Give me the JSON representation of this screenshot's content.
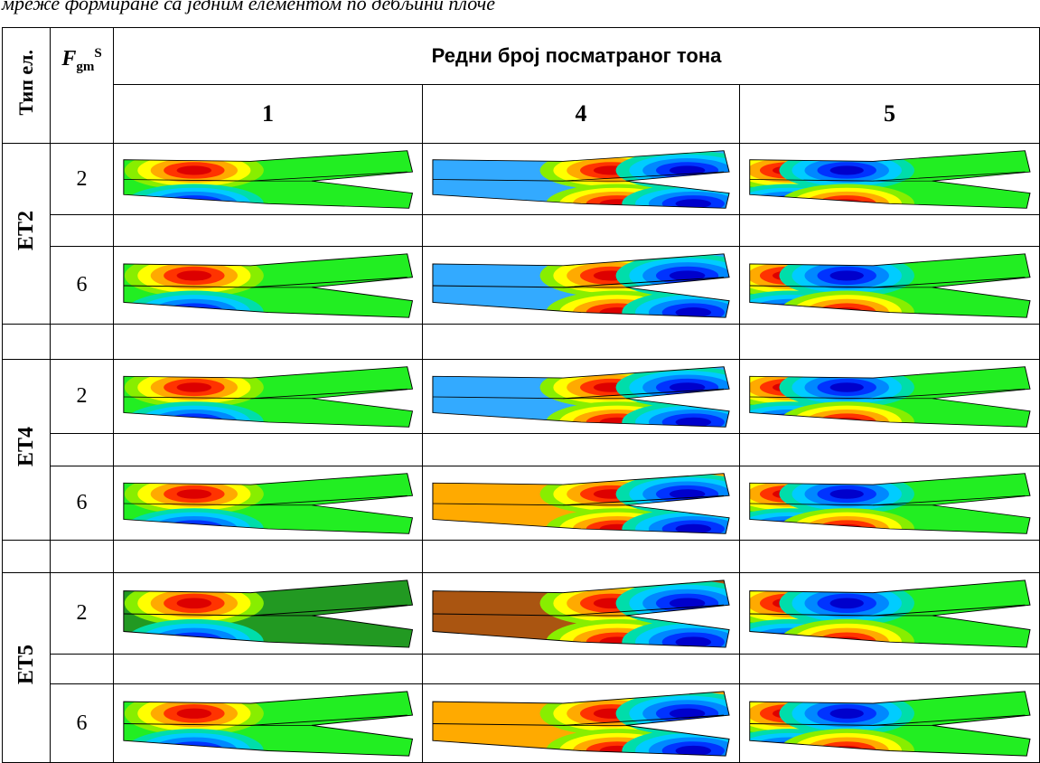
{
  "caption": "мреже формиране са једним елементом по дебљини плоче",
  "header": {
    "type_label": "Тип ел.",
    "factor": {
      "base": "F",
      "sub": "gm",
      "sup": "S"
    },
    "group_title": "Редни број посматраног тона",
    "modes": [
      "1",
      "4",
      "5"
    ]
  },
  "groups": [
    {
      "label": "ET2",
      "rows": [
        "2",
        "6"
      ]
    },
    {
      "label": "ET4",
      "rows": [
        "2",
        "6"
      ]
    },
    {
      "label": "ET5",
      "rows": [
        "2",
        "6"
      ]
    }
  ]
}
